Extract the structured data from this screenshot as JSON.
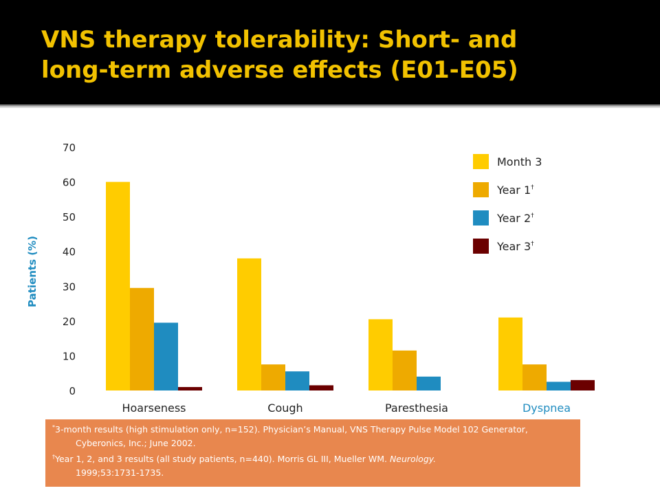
{
  "slide": {
    "title_line1": "VNS therapy tolerability: Short- and",
    "title_line2": "long-term adverse effects (E01-E05)"
  },
  "colors": {
    "title": "#f2c200",
    "month3": "#ffcc00",
    "year1": "#eeaa00",
    "year2": "#1f8cc0",
    "year3": "#6b0000",
    "axis_label": "#1f8cc0",
    "footnote_bg": "#e8874e"
  },
  "chart_data": {
    "type": "bar",
    "title": "",
    "xlabel": "",
    "ylabel": "Patients (%)",
    "ylim": [
      0,
      70
    ],
    "yticks": [
      0,
      10,
      20,
      30,
      40,
      50,
      60,
      70
    ],
    "categories": [
      "Hoarseness",
      "Cough",
      "Paresthesia",
      "Dyspnea"
    ],
    "series": [
      {
        "name": "Month 3",
        "marker": "*",
        "values": [
          60,
          38,
          20.5,
          21
        ]
      },
      {
        "name": "Year 1",
        "marker": "†",
        "values": [
          29.5,
          7.5,
          11.5,
          7.5
        ]
      },
      {
        "name": "Year 2",
        "marker": "†",
        "values": [
          19.5,
          5.5,
          4,
          2.5
        ]
      },
      {
        "name": "Year 3",
        "marker": "†",
        "values": [
          1,
          1.5,
          0,
          3
        ]
      }
    ],
    "legend_position": "top-right",
    "grid": false
  },
  "footnotes": {
    "n1_mark": "*",
    "n1_text": "3-month results (high stimulation only, n=152). Physician’s Manual, VNS Therapy Pulse Model 102 Generator, Cyberonics, Inc.; June 2002.",
    "n2_mark": "†",
    "n2_text_a": "Year 1, 2, and 3 results (all study patients, n=440). Morris GL III, Mueller WM.",
    "n2_journal": "Neurology.",
    "n2_text_b": "1999;53:1731-1735."
  }
}
